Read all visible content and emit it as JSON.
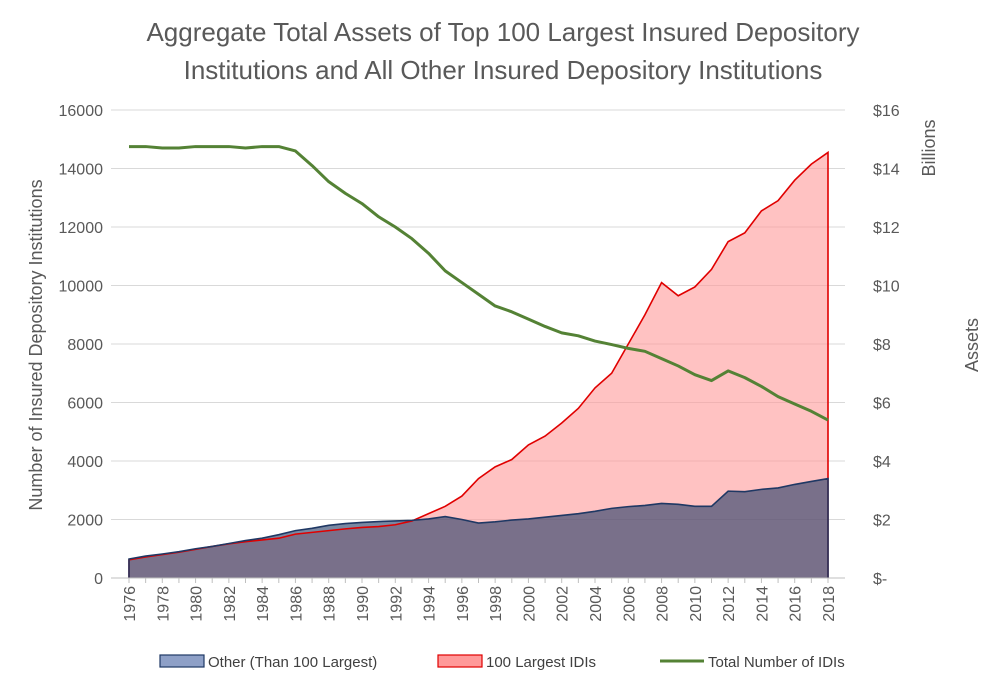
{
  "chart_data": {
    "type": "area",
    "title_lines": [
      "Aggregate Total Assets of Top 100 Largest Insured Depository",
      "Institutions and All Other Insured Depository Institutions"
    ],
    "y_left_label": "Number of Insured Depository Institutions",
    "y_right_label": "Assets",
    "y_right_units": "Billions",
    "y_left_ticks": [
      "0",
      "2000",
      "4000",
      "6000",
      "8000",
      "10000",
      "12000",
      "14000",
      "16000"
    ],
    "y_right_ticks": [
      "$-",
      "$2",
      "$4",
      "$6",
      "$8",
      "$10",
      "$12",
      "$14",
      "$16"
    ],
    "y_left_range": [
      0,
      16000
    ],
    "y_right_range": [
      0,
      16
    ],
    "x_ticks": [
      "1976",
      "1978",
      "1980",
      "1982",
      "1984",
      "1986",
      "1988",
      "1990",
      "1992",
      "1994",
      "1996",
      "1998",
      "2000",
      "2002",
      "2004",
      "2006",
      "2008",
      "2010",
      "2012",
      "2014",
      "2016",
      "2018"
    ],
    "x": [
      1976,
      1977,
      1978,
      1979,
      1980,
      1981,
      1982,
      1983,
      1984,
      1985,
      1986,
      1987,
      1988,
      1989,
      1990,
      1991,
      1992,
      1993,
      1994,
      1995,
      1996,
      1997,
      1998,
      1999,
      2000,
      2001,
      2002,
      2003,
      2004,
      2005,
      2006,
      2007,
      2008,
      2009,
      2010,
      2011,
      2012,
      2013,
      2014,
      2015,
      2016,
      2017,
      2018
    ],
    "series": [
      {
        "name": "Other (Than 100 Largest)",
        "axis": "right",
        "kind": "area",
        "fill": "#1f3864",
        "stroke": "#1f3864",
        "values": [
          0.65,
          0.75,
          0.82,
          0.9,
          1.0,
          1.08,
          1.18,
          1.28,
          1.36,
          1.48,
          1.62,
          1.7,
          1.8,
          1.86,
          1.9,
          1.93,
          1.95,
          1.97,
          2.02,
          2.1,
          2.0,
          1.88,
          1.92,
          1.98,
          2.02,
          2.08,
          2.14,
          2.2,
          2.28,
          2.38,
          2.44,
          2.48,
          2.55,
          2.52,
          2.45,
          2.45,
          2.97,
          2.95,
          3.03,
          3.08,
          3.2,
          3.3,
          3.4
        ]
      },
      {
        "name": "100 Largest IDIs",
        "axis": "right",
        "kind": "area",
        "fill": "#ff9999",
        "stroke": "#e00000",
        "values": [
          0.62,
          0.72,
          0.8,
          0.88,
          0.98,
          1.08,
          1.17,
          1.24,
          1.3,
          1.36,
          1.5,
          1.56,
          1.62,
          1.68,
          1.73,
          1.76,
          1.82,
          1.95,
          2.2,
          2.45,
          2.8,
          3.4,
          3.8,
          4.05,
          4.55,
          4.85,
          5.3,
          5.8,
          6.5,
          7.0,
          8.0,
          9.0,
          10.1,
          9.65,
          9.95,
          10.55,
          11.5,
          11.8,
          12.55,
          12.9,
          13.6,
          14.15,
          14.55
        ]
      },
      {
        "name": "Total Number of IDIs",
        "axis": "left",
        "kind": "line",
        "stroke": "#548235",
        "values": [
          14750,
          14750,
          14700,
          14700,
          14750,
          14750,
          14750,
          14700,
          14750,
          14750,
          14600,
          14100,
          13550,
          13150,
          12800,
          12350,
          12000,
          11600,
          11100,
          10500,
          10100,
          9700,
          9300,
          9100,
          8850,
          8600,
          8380,
          8280,
          8100,
          7980,
          7850,
          7750,
          7500,
          7250,
          6950,
          6750,
          7080,
          6850,
          6550,
          6200,
          5950,
          5700,
          5400
        ]
      }
    ],
    "legend_position": "bottom",
    "grid": "horizontal"
  }
}
